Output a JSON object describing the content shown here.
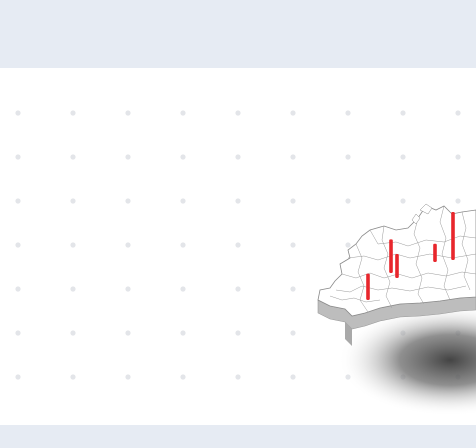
{
  "colors": {
    "page_background": "#e6ebf3",
    "canvas_background": "#ffffff",
    "grid_dot": "#e3e5e9",
    "map_top": "#ffffff",
    "map_side": "#bdbdbd",
    "map_borders": "#8a8a8a",
    "marker": "#e8262c"
  },
  "map": {
    "markers": [
      {
        "name": "marker-1",
        "height_share": 0.55
      },
      {
        "name": "marker-2",
        "height_share": 0.7
      },
      {
        "name": "marker-3",
        "height_share": 0.5
      },
      {
        "name": "marker-4",
        "height_share": 0.38
      },
      {
        "name": "marker-5",
        "height_share": 1.0
      }
    ]
  }
}
